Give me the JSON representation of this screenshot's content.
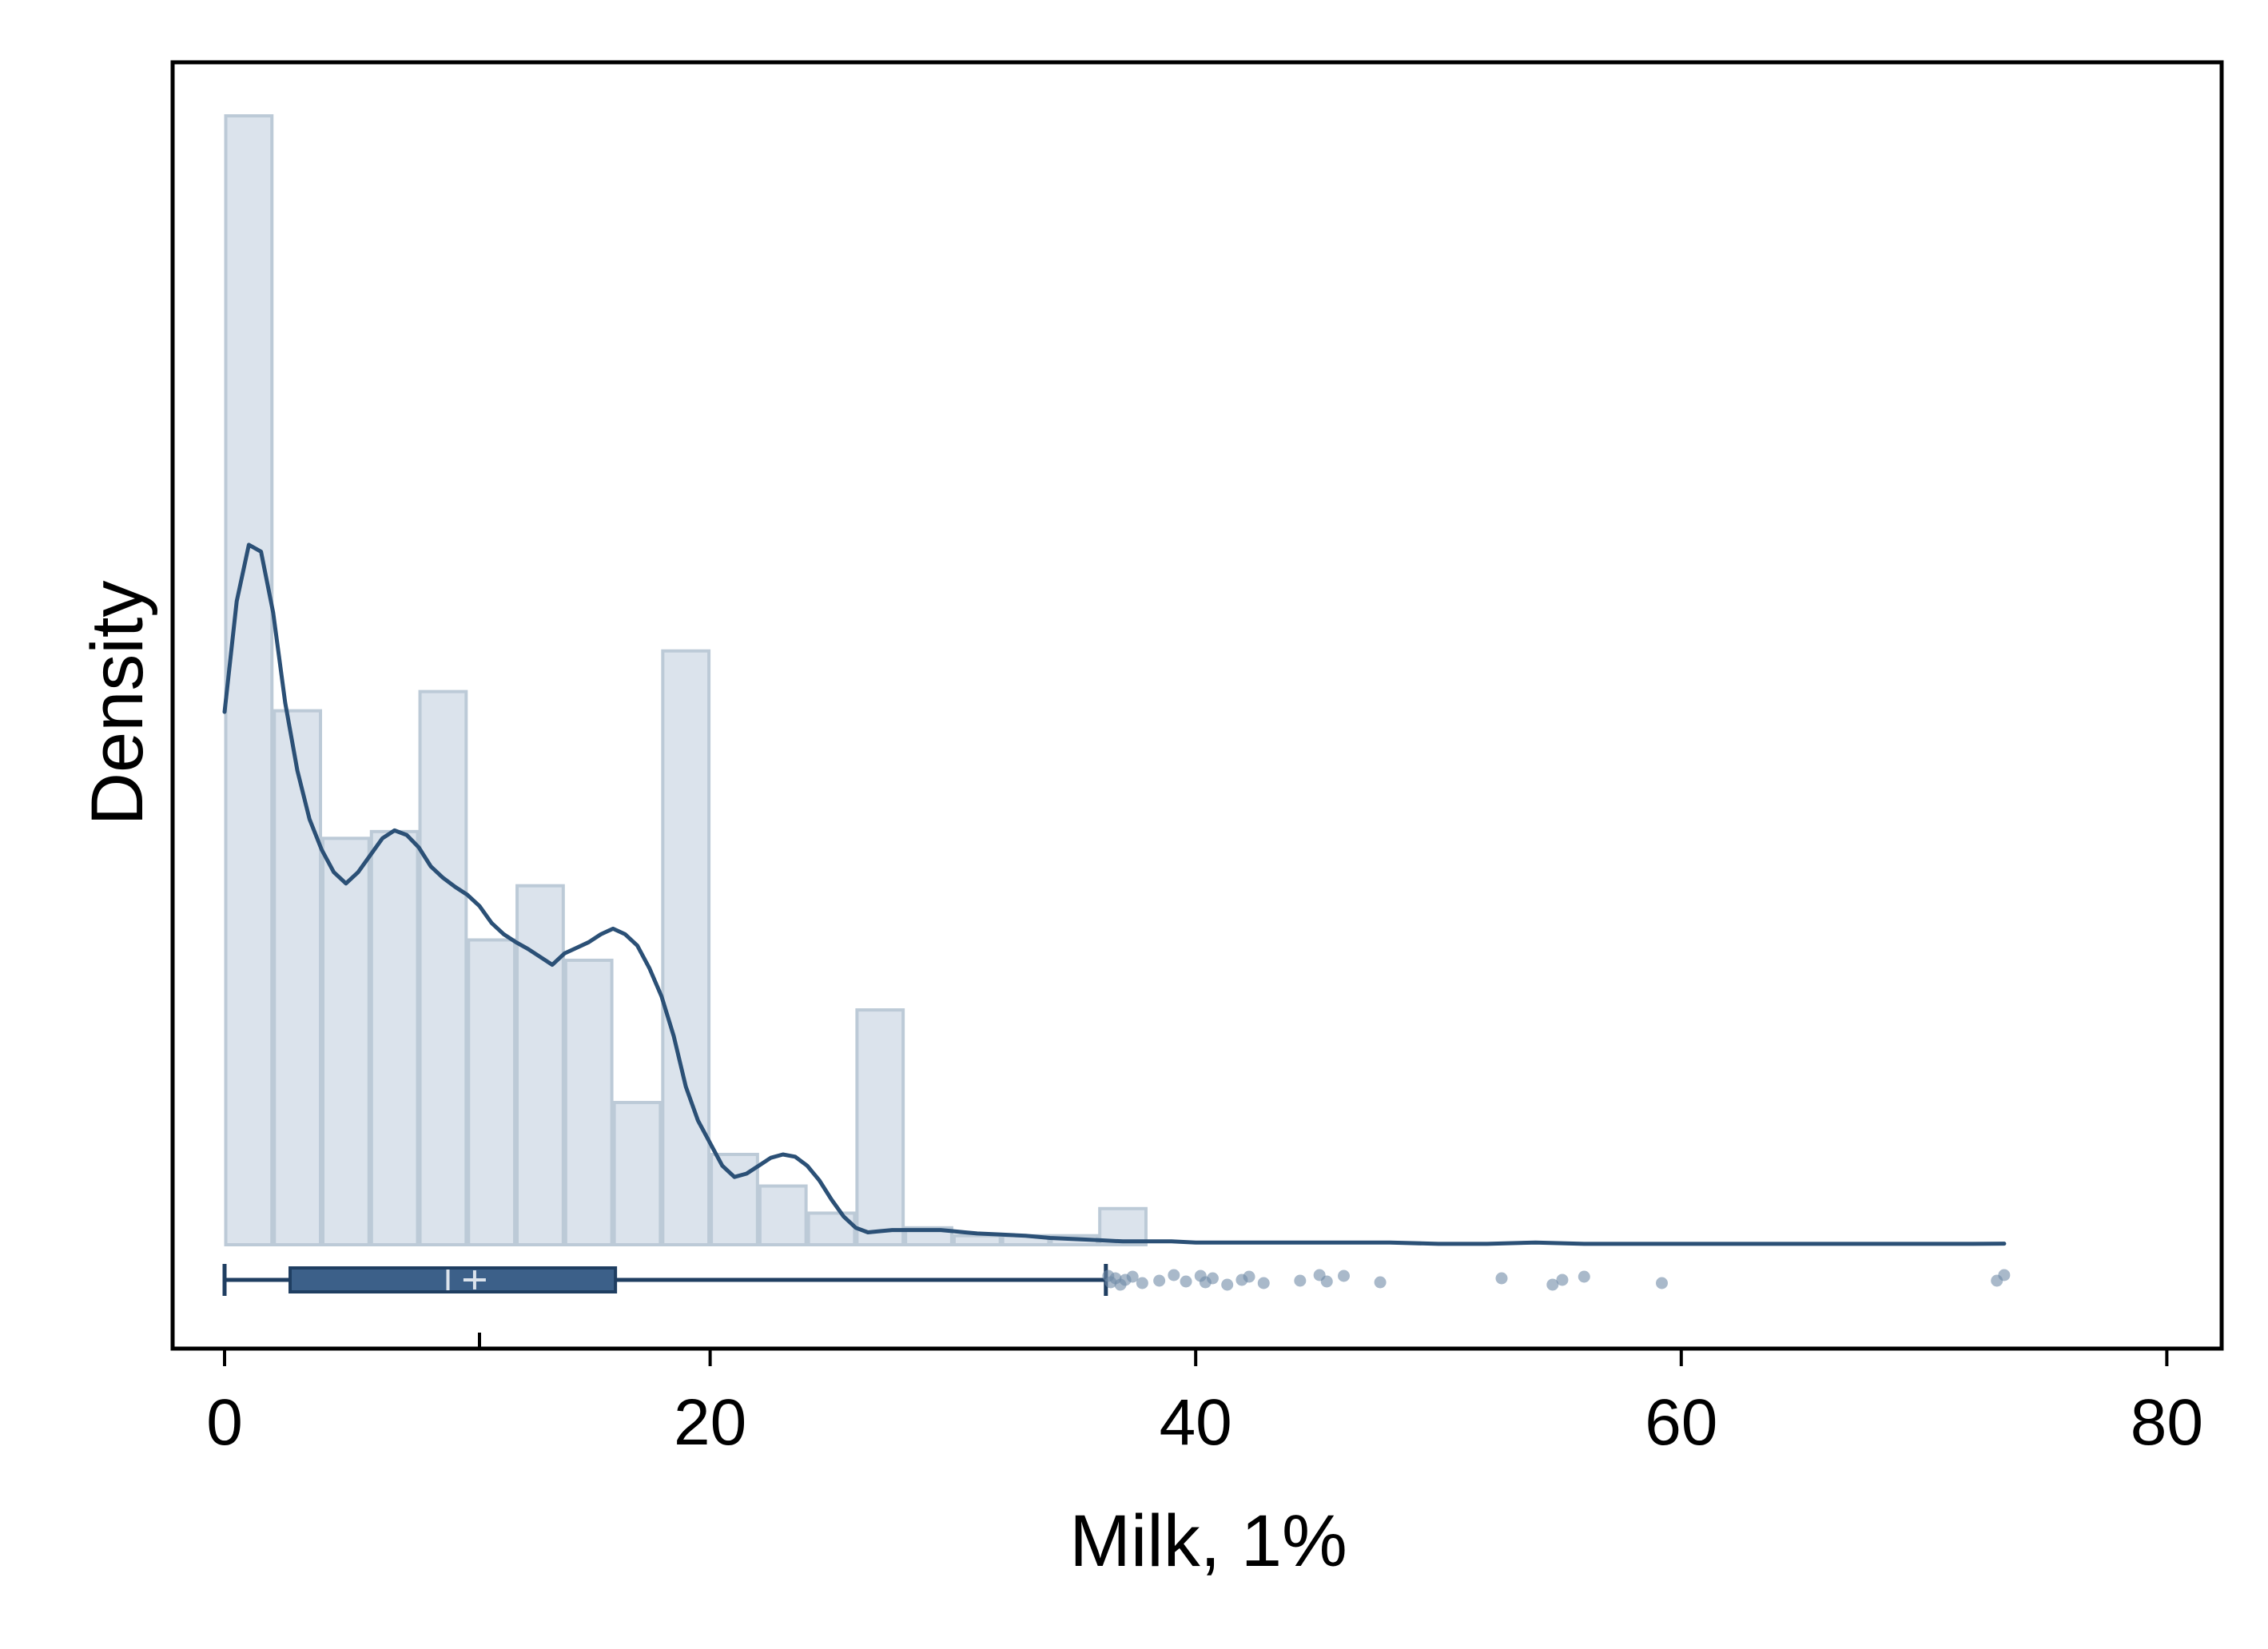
{
  "chart_data": {
    "type": "histogram",
    "title": "",
    "xlabel": "Milk, 1%",
    "ylabel": "Density",
    "xlim": [
      -2.5,
      82
    ],
    "ylim": [
      0,
      1
    ],
    "xticks": [
      0,
      20,
      40,
      60,
      80
    ],
    "xtick_labels": [
      "0",
      "20",
      "40",
      "60",
      "80"
    ],
    "yticks": [],
    "grid": false,
    "legend": "none",
    "histogram": {
      "bin_width": 2,
      "bin_edges": [
        0,
        2,
        4,
        6,
        8,
        10,
        12,
        14,
        16,
        18,
        20,
        22,
        24,
        26,
        28,
        30,
        32,
        34,
        36,
        38,
        40
      ],
      "relative_density": [
        1.0,
        0.473,
        0.36,
        0.366,
        0.49,
        0.27,
        0.318,
        0.252,
        0.126,
        0.526,
        0.08,
        0.052,
        0.028,
        0.208,
        0.015,
        0.008,
        0.008,
        0.008,
        0.032,
        0.0
      ]
    },
    "kde": {
      "x": [
        0,
        0.5,
        1,
        1.5,
        2,
        2.5,
        3,
        3.5,
        4,
        4.5,
        5,
        5.5,
        6,
        6.5,
        7,
        7.5,
        8,
        8.5,
        9,
        9.5,
        10,
        10.5,
        11,
        11.5,
        12,
        12.5,
        13,
        13.5,
        14,
        14.5,
        15,
        15.5,
        16,
        16.5,
        17,
        17.5,
        18,
        18.5,
        19,
        19.5,
        20,
        20.5,
        21,
        21.5,
        22,
        22.5,
        23,
        23.5,
        24,
        24.5,
        25,
        25.5,
        26,
        26.5,
        27,
        27.5,
        28,
        28.5,
        29,
        29.5,
        30,
        30.5,
        31,
        32,
        33,
        34,
        35,
        36,
        37,
        38,
        39,
        40,
        42,
        44,
        46,
        48,
        50,
        52,
        54,
        56,
        58,
        60,
        62,
        64,
        66,
        68,
        70,
        72,
        73.3
      ],
      "y": [
        0.472,
        0.57,
        0.62,
        0.614,
        0.56,
        0.48,
        0.42,
        0.377,
        0.35,
        0.33,
        0.32,
        0.33,
        0.345,
        0.36,
        0.367,
        0.363,
        0.352,
        0.335,
        0.325,
        0.317,
        0.31,
        0.3,
        0.285,
        0.275,
        0.268,
        0.262,
        0.255,
        0.248,
        0.258,
        0.263,
        0.268,
        0.275,
        0.28,
        0.275,
        0.265,
        0.245,
        0.22,
        0.185,
        0.14,
        0.11,
        0.09,
        0.07,
        0.06,
        0.063,
        0.07,
        0.077,
        0.08,
        0.078,
        0.07,
        0.057,
        0.04,
        0.025,
        0.015,
        0.011,
        0.012,
        0.013,
        0.013,
        0.013,
        0.013,
        0.013,
        0.012,
        0.011,
        0.01,
        0.009,
        0.008,
        0.006,
        0.005,
        0.004,
        0.003,
        0.003,
        0.003,
        0.002,
        0.002,
        0.002,
        0.002,
        0.002,
        0.0008,
        0.0008,
        0.002,
        0.0008,
        0.0008,
        0.0008,
        0.0008,
        0.0008,
        0.0008,
        0.0008,
        0.0008,
        0.0008,
        0.001
      ]
    },
    "boxplot": {
      "min": 0,
      "q1": 2.7,
      "median": 9.2,
      "mean": 10.3,
      "q3": 16.1,
      "whisker_high": 36.3,
      "outliers": [
        36.4,
        36.5,
        36.7,
        36.9,
        37.1,
        37.4,
        37.8,
        38.5,
        39.1,
        39.6,
        40.2,
        40.4,
        40.7,
        41.3,
        41.9,
        42.2,
        42.8,
        44.3,
        45.1,
        45.4,
        46.1,
        47.6,
        52.6,
        54.7,
        55.1,
        56.0,
        59.2,
        73.0,
        73.3
      ]
    },
    "colors": {
      "bar_fill": "#dbe3ec",
      "bar_edge": "#bccad7",
      "kde_line": "#2b5076",
      "box_fill": "#3c6089",
      "box_line": "#1f3e61",
      "outlier_dot": "#6f8aa6"
    }
  }
}
